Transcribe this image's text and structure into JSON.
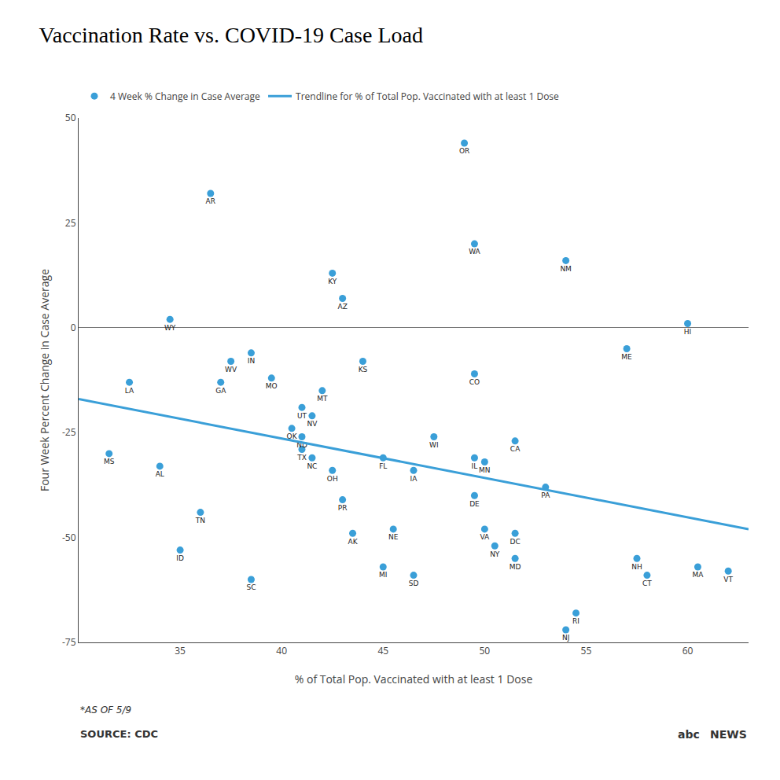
{
  "chart_data": {
    "type": "scatter",
    "title": "Vaccination Rate vs. COVID-19 Case Load",
    "xlabel": "% of Total Pop. Vaccinated with at least 1 Dose",
    "ylabel": "Four Week Percent Change in Case Average",
    "xlim": [
      30,
      63
    ],
    "ylim": [
      -75,
      50
    ],
    "xticks": [
      35,
      40,
      45,
      50,
      55,
      60
    ],
    "yticks": [
      -75,
      -50,
      -25,
      0,
      25,
      50
    ],
    "grid": false,
    "legend": "top",
    "series": [
      {
        "name": "4 Week % Change in Case Average",
        "type": "scatter",
        "marker": "circle",
        "color": "#3a9fd8",
        "labels": [
          "MS",
          "AL",
          "LA",
          "WY",
          "AR",
          "TN",
          "ID",
          "WV",
          "GA",
          "IN",
          "SC",
          "MO",
          "OK",
          "ND",
          "TX",
          "NC",
          "UT",
          "NV",
          "MT",
          "KY",
          "AZ",
          "OH",
          "PR",
          "AK",
          "KS",
          "FL",
          "NE",
          "MI",
          "IA",
          "SD",
          "WI",
          "OR",
          "IL",
          "MN",
          "DE",
          "VA",
          "NY",
          "CO",
          "WA",
          "CA",
          "DC",
          "MD",
          "PA",
          "NM",
          "RI",
          "NJ",
          "ME",
          "NH",
          "CT",
          "HI",
          "MA",
          "VT"
        ],
        "x": [
          31.5,
          34.0,
          32.5,
          34.5,
          36.5,
          36.0,
          35.0,
          37.5,
          37.0,
          38.5,
          38.5,
          39.5,
          40.5,
          41.0,
          41.0,
          41.5,
          41.0,
          41.5,
          42.0,
          42.5,
          43.0,
          42.5,
          43.0,
          43.5,
          44.0,
          45.0,
          45.5,
          45.0,
          46.5,
          46.5,
          47.5,
          49.0,
          49.5,
          50.0,
          49.5,
          50.0,
          50.5,
          49.5,
          49.5,
          51.5,
          51.5,
          51.5,
          53.0,
          54.0,
          54.5,
          54.0,
          57.0,
          57.5,
          58.0,
          60.0,
          60.5,
          62.0
        ],
        "values": [
          -30,
          -33,
          -13,
          2,
          32,
          -44,
          -53,
          -8,
          -13,
          -6,
          -60,
          -12,
          -24,
          -26,
          -29,
          -31,
          -19,
          -21,
          -15,
          13,
          7,
          -34,
          -41,
          -49,
          -8,
          -31,
          -48,
          -57,
          -34,
          -59,
          -26,
          44,
          -31,
          -32,
          -40,
          -48,
          -52,
          -11,
          20,
          -27,
          -49,
          -55,
          -38,
          16,
          -68,
          -72,
          -5,
          -55,
          -59,
          1,
          -57,
          -58
        ]
      },
      {
        "name": "Trendline for % of Total Pop. Vaccinated with at least 1 Dose",
        "type": "line",
        "line_style": "solid",
        "color": "#3a9fd8",
        "x": [
          30,
          63
        ],
        "values": [
          -17,
          -48
        ]
      }
    ],
    "annotations": [
      "*AS OF 5/9",
      "SOURCE: CDC",
      "abc",
      "NEWS"
    ]
  }
}
